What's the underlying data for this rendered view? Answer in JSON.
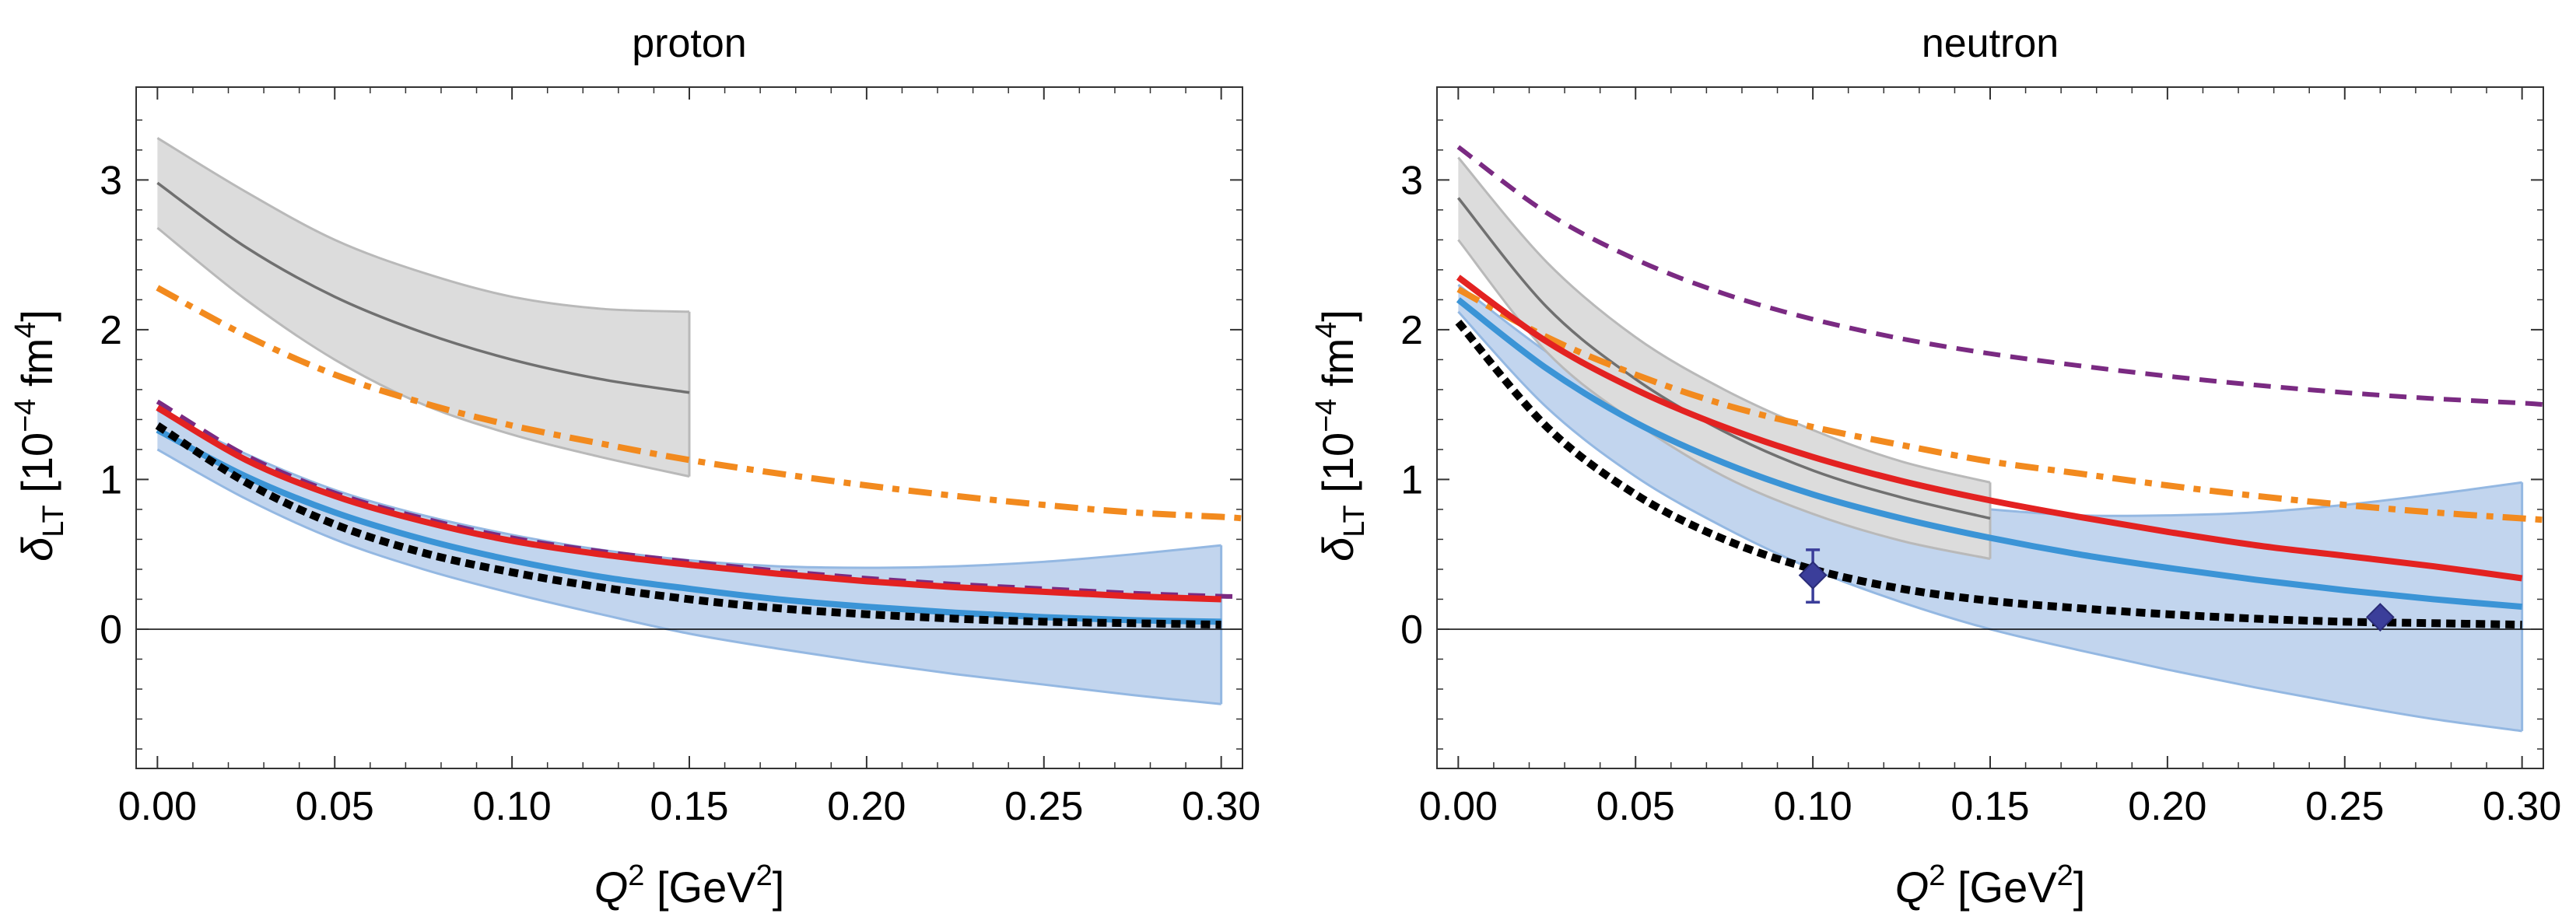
{
  "colors": {
    "gray_band": "#dcdcdc",
    "gray_line": "#707070",
    "gray_edge": "#b9b9b9",
    "blue_band": "#c2d5ee",
    "blue_edge": "#94b8e2",
    "blue_line": "#3b94d6",
    "red_line": "#e32221",
    "orange_line": "#f28a1e",
    "purple_line": "#7a2a82",
    "black_line": "#000000",
    "marker": "#3b3e9a",
    "zero_line": "#000000"
  },
  "chart_data": [
    {
      "id": "proton",
      "type": "line",
      "title": "proton",
      "xlabel": {
        "symbol": "Q",
        "sup": "2",
        "unit_pre": "[GeV",
        "unit_sup": "2",
        "unit_post": "]"
      },
      "ylabel": {
        "symbol": "δ",
        "sub": "LT",
        "unit_pre": "[10",
        "unit_sup": "−4",
        "unit_mid": " fm",
        "unit_sup2": "4",
        "unit_post": "]"
      },
      "xlim": [
        -0.006,
        0.306
      ],
      "ylim": [
        -0.93,
        3.62
      ],
      "xticks": [
        0.0,
        0.05,
        0.1,
        0.15,
        0.2,
        0.25,
        0.3
      ],
      "xtick_labels": [
        "0.00",
        "0.05",
        "0.10",
        "0.15",
        "0.20",
        "0.25",
        "0.30"
      ],
      "yticks": [
        0,
        1,
        2,
        3
      ],
      "ytick_labels": [
        "0",
        "1",
        "2",
        "3"
      ],
      "bands": [
        {
          "name": "gray-band",
          "color_key": "gray_band",
          "edge_key": "gray_edge",
          "x": [
            0.0,
            0.025,
            0.05,
            0.075,
            0.1,
            0.125,
            0.15
          ],
          "upper": [
            3.28,
            2.92,
            2.6,
            2.38,
            2.22,
            2.14,
            2.12
          ],
          "lower": [
            2.68,
            2.2,
            1.8,
            1.5,
            1.3,
            1.15,
            1.02
          ]
        },
        {
          "name": "blue-band",
          "color_key": "blue_band",
          "edge_key": "blue_edge",
          "x": [
            0.0,
            0.025,
            0.05,
            0.075,
            0.1,
            0.125,
            0.15,
            0.175,
            0.2,
            0.225,
            0.25,
            0.275,
            0.3
          ],
          "upper": [
            1.46,
            1.17,
            0.93,
            0.76,
            0.63,
            0.53,
            0.46,
            0.42,
            0.41,
            0.42,
            0.45,
            0.5,
            0.56
          ],
          "lower": [
            1.2,
            0.87,
            0.6,
            0.4,
            0.24,
            0.1,
            -0.03,
            -0.13,
            -0.22,
            -0.3,
            -0.37,
            -0.44,
            -0.5
          ]
        }
      ],
      "series": [
        {
          "name": "gray-central",
          "color_key": "gray_line",
          "style": "solid",
          "width": 3.5,
          "x": [
            0.0,
            0.025,
            0.05,
            0.075,
            0.1,
            0.125,
            0.15
          ],
          "y": [
            2.98,
            2.55,
            2.22,
            1.98,
            1.8,
            1.67,
            1.58
          ]
        },
        {
          "name": "orange-dashdot",
          "color_key": "orange_line",
          "style": "dashdot",
          "width": 8,
          "x": [
            0.0,
            0.025,
            0.05,
            0.075,
            0.1,
            0.125,
            0.15,
            0.175,
            0.2,
            0.225,
            0.25,
            0.275,
            0.3,
            0.306
          ],
          "y": [
            2.28,
            1.96,
            1.7,
            1.51,
            1.36,
            1.24,
            1.13,
            1.04,
            0.96,
            0.89,
            0.83,
            0.78,
            0.75,
            0.74
          ]
        },
        {
          "name": "purple-dashed",
          "color_key": "purple_line",
          "style": "dashed",
          "width": 6,
          "x": [
            0.0,
            0.025,
            0.05,
            0.075,
            0.1,
            0.125,
            0.15,
            0.175,
            0.2,
            0.225,
            0.25,
            0.275,
            0.3,
            0.306
          ],
          "y": [
            1.52,
            1.16,
            0.91,
            0.74,
            0.61,
            0.52,
            0.45,
            0.39,
            0.34,
            0.3,
            0.27,
            0.24,
            0.22,
            0.22
          ]
        },
        {
          "name": "red-solid",
          "color_key": "red_line",
          "style": "solid",
          "width": 8,
          "x": [
            0.0,
            0.025,
            0.05,
            0.075,
            0.1,
            0.125,
            0.15,
            0.175,
            0.2,
            0.225,
            0.25,
            0.275,
            0.3
          ],
          "y": [
            1.48,
            1.13,
            0.89,
            0.72,
            0.59,
            0.5,
            0.43,
            0.37,
            0.32,
            0.28,
            0.25,
            0.22,
            0.2
          ]
        },
        {
          "name": "blue-solid",
          "color_key": "blue_line",
          "style": "solid",
          "width": 8,
          "x": [
            0.0,
            0.025,
            0.05,
            0.075,
            0.1,
            0.125,
            0.15,
            0.175,
            0.2,
            0.225,
            0.25,
            0.275,
            0.3
          ],
          "y": [
            1.33,
            1.02,
            0.78,
            0.6,
            0.46,
            0.35,
            0.27,
            0.2,
            0.15,
            0.11,
            0.08,
            0.06,
            0.05
          ]
        },
        {
          "name": "black-dotted",
          "color_key": "black_line",
          "style": "dotted",
          "width": 10,
          "x": [
            0.0,
            0.025,
            0.05,
            0.075,
            0.1,
            0.125,
            0.15,
            0.175,
            0.2,
            0.225,
            0.25,
            0.275,
            0.3
          ],
          "y": [
            1.36,
            0.98,
            0.7,
            0.51,
            0.38,
            0.28,
            0.2,
            0.14,
            0.1,
            0.07,
            0.05,
            0.04,
            0.03
          ]
        }
      ],
      "points": []
    },
    {
      "id": "neutron",
      "type": "line",
      "title": "neutron",
      "xlabel": {
        "symbol": "Q",
        "sup": "2",
        "unit_pre": "[GeV",
        "unit_sup": "2",
        "unit_post": "]"
      },
      "ylabel": {
        "symbol": "δ",
        "sub": "LT",
        "unit_pre": "[10",
        "unit_sup": "−4",
        "unit_mid": " fm",
        "unit_sup2": "4",
        "unit_post": "]"
      },
      "xlim": [
        -0.006,
        0.306
      ],
      "ylim": [
        -0.93,
        3.62
      ],
      "xticks": [
        0.0,
        0.05,
        0.1,
        0.15,
        0.2,
        0.25,
        0.3
      ],
      "xtick_labels": [
        "0.00",
        "0.05",
        "0.10",
        "0.15",
        "0.20",
        "0.25",
        "0.30"
      ],
      "yticks": [
        0,
        1,
        2,
        3
      ],
      "ytick_labels": [
        "0",
        "1",
        "2",
        "3"
      ],
      "bands": [
        {
          "name": "blue-band",
          "color_key": "blue_band",
          "edge_key": "blue_edge",
          "x": [
            0.0,
            0.025,
            0.05,
            0.075,
            0.1,
            0.125,
            0.15,
            0.175,
            0.2,
            0.225,
            0.25,
            0.275,
            0.3
          ],
          "upper": [
            2.3,
            1.85,
            1.48,
            1.2,
            1.0,
            0.86,
            0.8,
            0.76,
            0.76,
            0.78,
            0.83,
            0.9,
            0.98
          ],
          "lower": [
            2.12,
            1.48,
            1.02,
            0.68,
            0.4,
            0.18,
            0.0,
            -0.14,
            -0.27,
            -0.39,
            -0.5,
            -0.6,
            -0.68
          ]
        },
        {
          "name": "gray-band",
          "color_key": "gray_band",
          "edge_key": "gray_edge",
          "x": [
            0.0,
            0.025,
            0.05,
            0.075,
            0.1,
            0.125,
            0.15
          ],
          "upper": [
            3.15,
            2.45,
            1.95,
            1.6,
            1.33,
            1.12,
            0.98
          ],
          "lower": [
            2.6,
            1.85,
            1.38,
            1.02,
            0.77,
            0.59,
            0.47
          ]
        }
      ],
      "series": [
        {
          "name": "gray-central",
          "color_key": "gray_line",
          "style": "solid",
          "width": 3.5,
          "x": [
            0.0,
            0.025,
            0.05,
            0.075,
            0.1,
            0.125,
            0.15
          ],
          "y": [
            2.88,
            2.15,
            1.67,
            1.32,
            1.06,
            0.88,
            0.74
          ]
        },
        {
          "name": "purple-dashed",
          "color_key": "purple_line",
          "style": "dashed",
          "width": 6,
          "x": [
            0.0,
            0.025,
            0.05,
            0.075,
            0.1,
            0.125,
            0.15,
            0.175,
            0.2,
            0.225,
            0.25,
            0.275,
            0.3,
            0.306
          ],
          "y": [
            3.22,
            2.78,
            2.47,
            2.24,
            2.07,
            1.94,
            1.84,
            1.76,
            1.69,
            1.63,
            1.58,
            1.54,
            1.51,
            1.5
          ]
        },
        {
          "name": "orange-dashdot",
          "color_key": "orange_line",
          "style": "dashdot",
          "width": 8,
          "x": [
            0.0,
            0.025,
            0.05,
            0.075,
            0.1,
            0.125,
            0.15,
            0.175,
            0.2,
            0.225,
            0.25,
            0.275,
            0.3,
            0.306
          ],
          "y": [
            2.27,
            1.95,
            1.7,
            1.5,
            1.35,
            1.23,
            1.12,
            1.04,
            0.96,
            0.89,
            0.83,
            0.78,
            0.74,
            0.73
          ]
        },
        {
          "name": "red-solid",
          "color_key": "red_line",
          "style": "solid",
          "width": 8,
          "x": [
            0.0,
            0.025,
            0.05,
            0.075,
            0.1,
            0.125,
            0.15,
            0.175,
            0.2,
            0.225,
            0.25,
            0.275,
            0.3
          ],
          "y": [
            2.35,
            1.92,
            1.6,
            1.35,
            1.15,
            0.99,
            0.86,
            0.75,
            0.65,
            0.56,
            0.49,
            0.42,
            0.34
          ]
        },
        {
          "name": "blue-solid",
          "color_key": "blue_line",
          "style": "solid",
          "width": 8,
          "x": [
            0.0,
            0.025,
            0.05,
            0.075,
            0.1,
            0.125,
            0.15,
            0.175,
            0.2,
            0.225,
            0.25,
            0.275,
            0.3
          ],
          "y": [
            2.2,
            1.74,
            1.38,
            1.11,
            0.9,
            0.74,
            0.61,
            0.5,
            0.41,
            0.33,
            0.26,
            0.2,
            0.15
          ]
        },
        {
          "name": "black-dotted",
          "color_key": "black_line",
          "style": "dotted",
          "width": 10,
          "x": [
            0.0,
            0.025,
            0.05,
            0.075,
            0.1,
            0.125,
            0.15,
            0.175,
            0.2,
            0.225,
            0.25,
            0.275,
            0.3
          ],
          "y": [
            2.05,
            1.35,
            0.9,
            0.6,
            0.4,
            0.27,
            0.19,
            0.14,
            0.1,
            0.07,
            0.05,
            0.04,
            0.03
          ]
        }
      ],
      "points": [
        {
          "name": "data-point-1",
          "x": 0.1,
          "y": 0.36,
          "yerr_low": 0.18,
          "yerr_high": 0.53
        },
        {
          "name": "data-point-2",
          "x": 0.26,
          "y": 0.08,
          "yerr_low": 0.06,
          "yerr_high": 0.1
        }
      ]
    }
  ]
}
